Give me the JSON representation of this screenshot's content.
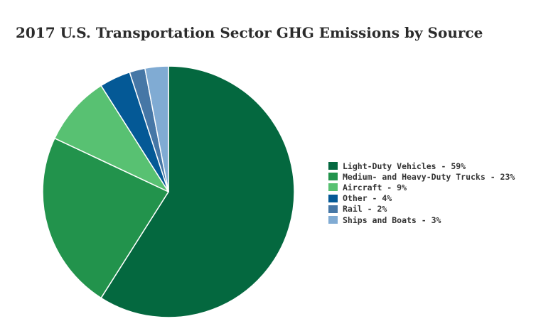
{
  "chart_data": {
    "type": "pie",
    "title": "2017 U.S. Transportation Sector GHG Emissions by Source",
    "legend_position": "right",
    "slices": [
      {
        "label": "Light-Duty Vehicles",
        "legend_text": "Light-Duty Vehicles - 59%",
        "value": 59,
        "color": "#04683f"
      },
      {
        "label": "Medium- and Heavy-Duty Trucks",
        "legend_text": "Medium- and Heavy-Duty Trucks - 23%",
        "value": 23,
        "color": "#22934c"
      },
      {
        "label": "Aircraft",
        "legend_text": "Aircraft - 9%",
        "value": 9,
        "color": "#58c172"
      },
      {
        "label": "Other",
        "legend_text": "Other - 4%",
        "value": 4,
        "color": "#045996"
      },
      {
        "label": "Rail",
        "legend_text": "Rail - 2%",
        "value": 2,
        "color": "#4677a6"
      },
      {
        "label": "Ships and Boats",
        "legend_text": "Ships and Boats - 3%",
        "value": 3,
        "color": "#80abd3"
      }
    ]
  }
}
